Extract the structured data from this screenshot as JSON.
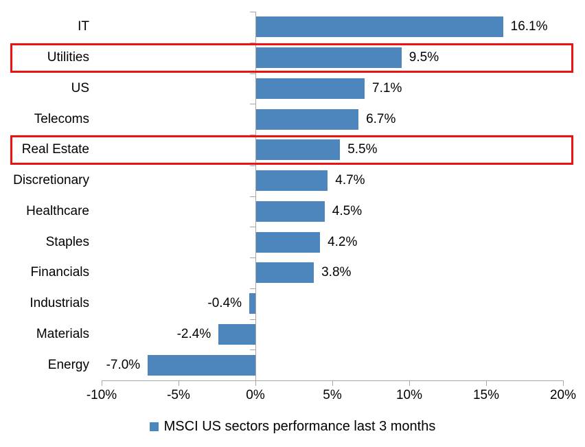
{
  "chart_data": {
    "type": "bar",
    "orientation": "horizontal",
    "categories": [
      "IT",
      "Utilities",
      "US",
      "Telecoms",
      "Real Estate",
      "Discretionary",
      "Healthcare",
      "Staples",
      "Financials",
      "Industrials",
      "Materials",
      "Energy"
    ],
    "values": [
      16.1,
      9.5,
      7.1,
      6.7,
      5.5,
      4.7,
      4.5,
      4.2,
      3.8,
      -0.4,
      -2.4,
      -7.0
    ],
    "value_labels": [
      "16.1%",
      "9.5%",
      "7.1%",
      "6.7%",
      "5.5%",
      "4.7%",
      "4.5%",
      "4.2%",
      "3.8%",
      "-0.4%",
      "-2.4%",
      "-7.0%"
    ],
    "highlighted_categories": [
      "Utilities",
      "Real Estate"
    ],
    "legend": "MSCI US sectors performance last 3 months",
    "legend_position": "bottom-center",
    "x_ticks": [
      "-10%",
      "-5%",
      "0%",
      "5%",
      "10%",
      "15%",
      "20%"
    ],
    "x_tick_values": [
      -10,
      -5,
      0,
      5,
      10,
      15,
      20
    ],
    "xlim": [
      -10,
      20
    ],
    "grid": "off",
    "title": "",
    "xlabel": "",
    "ylabel": "",
    "bar_color": "#4d86bd",
    "highlight_color": "#ee1111",
    "axis_color": "#a6a6a6",
    "text_color": "#000000"
  }
}
